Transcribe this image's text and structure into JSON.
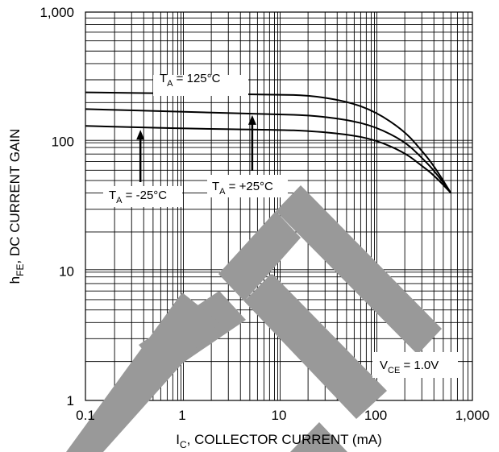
{
  "chart_data": {
    "type": "line",
    "x_scale": "log",
    "y_scale": "log",
    "xlim": [
      0.1,
      1000
    ],
    "ylim": [
      1,
      1000
    ],
    "grid": true,
    "x_ticks": [
      {
        "value": 0.1,
        "label": "0.1"
      },
      {
        "value": 1,
        "label": "1"
      },
      {
        "value": 10,
        "label": "10"
      },
      {
        "value": 100,
        "label": "100"
      },
      {
        "value": 1000,
        "label": "1,000"
      }
    ],
    "y_ticks": [
      {
        "value": 1,
        "label": "1"
      },
      {
        "value": 10,
        "label": "10"
      },
      {
        "value": 100,
        "label": "100"
      },
      {
        "value": 1000,
        "label": "1,000"
      }
    ],
    "xlabel": {
      "main": "I",
      "sub": "C",
      "rest": ", COLLECTOR CURRENT (mA)"
    },
    "ylabel": {
      "main": "h",
      "sub": "FE",
      "rest": ", DC CURRENT GAIN"
    },
    "series": [
      {
        "name": "TA = 125°C",
        "x": [
          0.1,
          1,
          10,
          20,
          50,
          100,
          200,
          300,
          400,
          600
        ],
        "y": [
          240,
          235,
          230,
          228,
          205,
          170,
          120,
          85,
          65,
          40
        ]
      },
      {
        "name": "TA = +25°C",
        "x": [
          0.1,
          1,
          10,
          20,
          50,
          100,
          200,
          300,
          400,
          600
        ],
        "y": [
          178,
          170,
          162,
          160,
          148,
          130,
          100,
          75,
          60,
          40
        ]
      },
      {
        "name": "TA = -25°C",
        "x": [
          0.1,
          1,
          10,
          20,
          50,
          100,
          200,
          300,
          400,
          600
        ],
        "y": [
          132,
          126,
          123,
          121,
          114,
          103,
          82,
          65,
          55,
          40
        ]
      }
    ],
    "annotations": [
      {
        "id": "ta125",
        "main": "T",
        "sub": "A",
        "rest": " = 125°C"
      },
      {
        "id": "ta25",
        "main": "T",
        "sub": "A",
        "rest": " = +25°C"
      },
      {
        "id": "tam25",
        "main": "T",
        "sub": "A",
        "rest": " = -25°C"
      },
      {
        "id": "vce",
        "main": "V",
        "sub": "CE",
        "rest": " = 1.0V"
      }
    ],
    "watermark": "TE"
  }
}
